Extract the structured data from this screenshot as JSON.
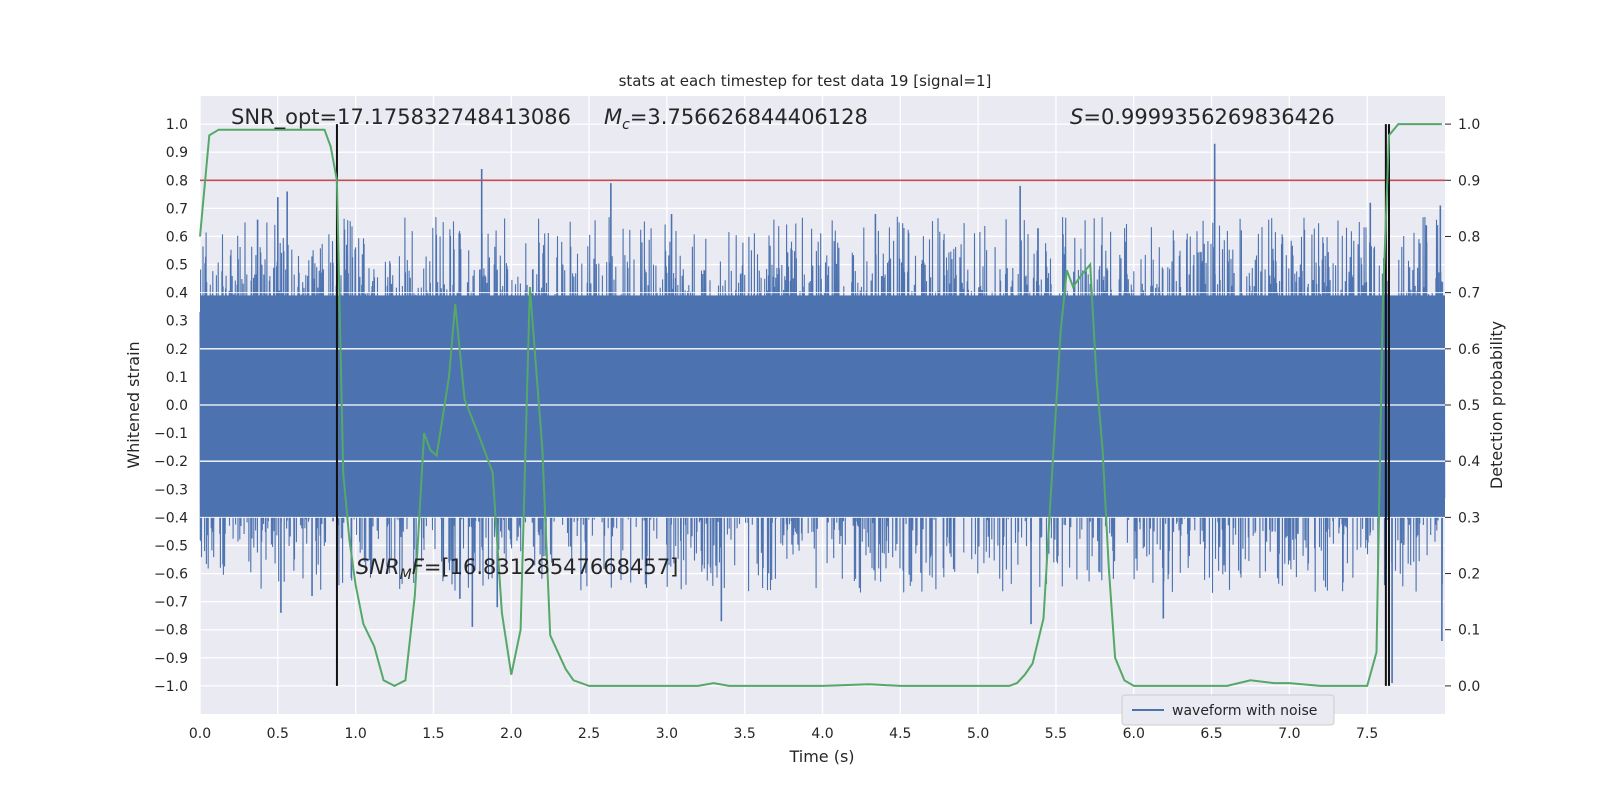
{
  "chart_data": {
    "type": "line",
    "title": "stats at each timestep for test data 19 [signal=1]",
    "xlabel": "Time (s)",
    "ylabel": "Whitened strain",
    "ylabel_right": "Detection probability",
    "xlim": [
      0.0,
      8.0
    ],
    "ylim": [
      -1.1,
      1.1
    ],
    "ylim_right": [
      -0.05,
      1.05
    ],
    "x_ticks": [
      "0.0",
      "0.5",
      "1.0",
      "1.5",
      "2.0",
      "2.5",
      "3.0",
      "3.5",
      "4.0",
      "4.5",
      "5.0",
      "5.5",
      "6.0",
      "6.5",
      "7.0",
      "7.5"
    ],
    "x_tick_values": [
      0.0,
      0.5,
      1.0,
      1.5,
      2.0,
      2.5,
      3.0,
      3.5,
      4.0,
      4.5,
      5.0,
      5.5,
      6.0,
      6.5,
      7.0,
      7.5
    ],
    "y_ticks": [
      "1.0",
      "0.9",
      "0.8",
      "0.7",
      "0.6",
      "0.5",
      "0.4",
      "0.3",
      "0.2",
      "0.1",
      "0.0",
      "−0.1",
      "−0.2",
      "−0.3",
      "−0.4",
      "−0.5",
      "−0.6",
      "−0.7",
      "−0.8",
      "−0.9",
      "−1.0"
    ],
    "y_tick_values": [
      1.0,
      0.9,
      0.8,
      0.7,
      0.6,
      0.5,
      0.4,
      0.3,
      0.2,
      0.1,
      0.0,
      -0.1,
      -0.2,
      -0.3,
      -0.4,
      -0.5,
      -0.6,
      -0.7,
      -0.8,
      -0.9,
      -1.0
    ],
    "y_right_ticks": [
      "1.0",
      "0.9",
      "0.8",
      "0.7",
      "0.6",
      "0.5",
      "0.4",
      "0.3",
      "0.2",
      "0.1",
      "0.0"
    ],
    "y_right_tick_values": [
      1.0,
      0.9,
      0.8,
      0.7,
      0.6,
      0.5,
      0.4,
      0.3,
      0.2,
      0.1,
      0.0
    ],
    "annotations": {
      "snr_opt": "SNR_opt=17.175832748413086",
      "mc": "=3.756626844406128",
      "s": "=0.9999356269836426",
      "snr_mf": "=[16.83128547668457]"
    },
    "threshold": {
      "value_right": 0.9,
      "color": "#c44e52"
    },
    "vertical_markers": [
      0.88,
      7.62,
      7.64
    ],
    "legend": {
      "label": "waveform with noise",
      "placement": "lower-right"
    },
    "waveform": {
      "name": "waveform with noise",
      "color": "#4c72b0",
      "core_band": [
        -0.4,
        0.39
      ],
      "n_samples": 4096,
      "seed": 19,
      "spikes": [
        {
          "t": 1.81,
          "v": 0.84
        },
        {
          "t": 2.64,
          "v": 0.79
        },
        {
          "t": 5.27,
          "v": 0.78
        },
        {
          "t": 6.52,
          "v": 0.93
        },
        {
          "t": 7.64,
          "v": 0.86
        },
        {
          "t": 0.37,
          "v": 0.66
        },
        {
          "t": 0.56,
          "v": 0.76
        },
        {
          "t": 0.5,
          "v": 0.74
        },
        {
          "t": 3.03,
          "v": 0.68
        },
        {
          "t": 4.34,
          "v": 0.68
        },
        {
          "t": 7.52,
          "v": 0.72
        },
        {
          "t": 7.88,
          "v": 0.64
        },
        {
          "t": 7.97,
          "v": 0.71
        },
        {
          "t": 3.35,
          "v": -0.77
        },
        {
          "t": 5.34,
          "v": -0.78
        },
        {
          "t": 6.19,
          "v": -0.76
        },
        {
          "t": 7.62,
          "v": -0.87
        },
        {
          "t": 7.66,
          "v": -0.99
        },
        {
          "t": 7.98,
          "v": -0.84
        },
        {
          "t": 1.75,
          "v": -0.79
        },
        {
          "t": 0.52,
          "v": -0.74
        },
        {
          "t": 1.67,
          "v": -0.69
        },
        {
          "t": 1.91,
          "v": -0.72
        },
        {
          "t": 0.72,
          "v": -0.68
        }
      ]
    },
    "probability": {
      "name": "detection probability",
      "color": "#55a868",
      "x": [
        0.0,
        0.06,
        0.12,
        0.2,
        0.5,
        0.8,
        0.84,
        0.88,
        0.92,
        0.96,
        1.0,
        1.05,
        1.12,
        1.18,
        1.25,
        1.32,
        1.38,
        1.44,
        1.48,
        1.52,
        1.6,
        1.64,
        1.7,
        1.8,
        1.88,
        1.94,
        2.0,
        2.06,
        2.12,
        2.2,
        2.25,
        2.3,
        2.35,
        2.4,
        2.5,
        2.8,
        3.2,
        3.3,
        3.4,
        3.6,
        4.0,
        4.3,
        4.5,
        4.8,
        5.0,
        5.2,
        5.25,
        5.3,
        5.35,
        5.42,
        5.48,
        5.53,
        5.57,
        5.61,
        5.66,
        5.72,
        5.76,
        5.8,
        5.84,
        5.88,
        5.94,
        6.0,
        6.3,
        6.6,
        6.75,
        6.9,
        7.0,
        7.2,
        7.5,
        7.56,
        7.6,
        7.64,
        7.7,
        7.75,
        7.8,
        7.98
      ],
      "y": [
        0.8,
        0.98,
        0.99,
        0.99,
        0.99,
        0.99,
        0.96,
        0.9,
        0.38,
        0.26,
        0.18,
        0.11,
        0.07,
        0.01,
        0.0,
        0.01,
        0.16,
        0.45,
        0.42,
        0.41,
        0.55,
        0.68,
        0.51,
        0.44,
        0.38,
        0.13,
        0.02,
        0.1,
        0.71,
        0.42,
        0.09,
        0.06,
        0.03,
        0.01,
        0.0,
        0.0,
        0.0,
        0.005,
        0.0,
        0.0,
        0.0,
        0.003,
        0.0,
        0.0,
        0.0,
        0.0,
        0.005,
        0.02,
        0.04,
        0.12,
        0.4,
        0.63,
        0.74,
        0.71,
        0.73,
        0.75,
        0.55,
        0.42,
        0.21,
        0.05,
        0.01,
        0.0,
        0.0,
        0.0,
        0.01,
        0.005,
        0.005,
        0.0,
        0.0,
        0.06,
        0.68,
        0.98,
        1.0,
        1.0,
        1.0,
        1.0
      ]
    }
  }
}
